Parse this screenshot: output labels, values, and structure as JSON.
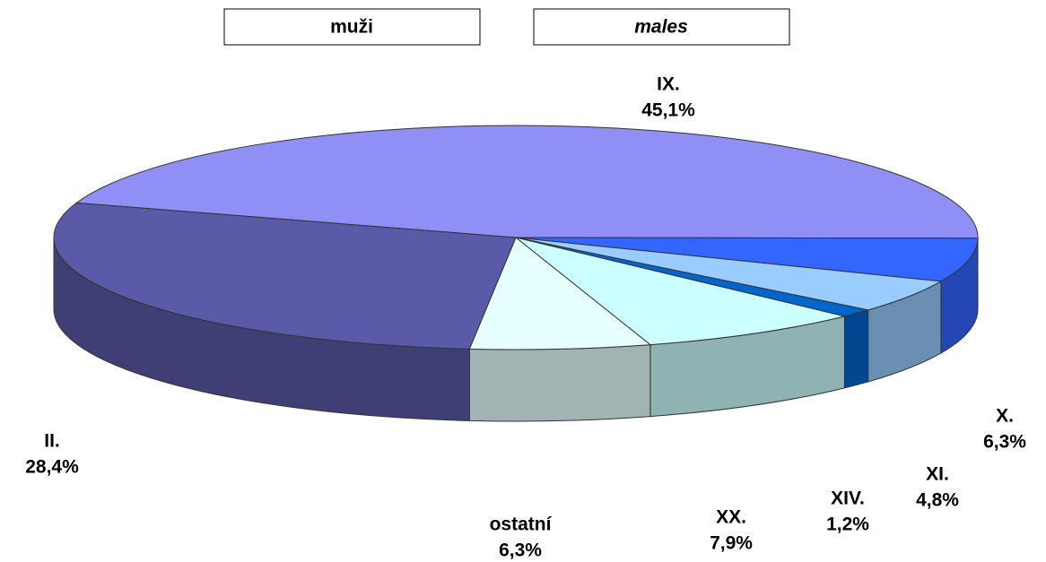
{
  "chart_data": {
    "type": "pie3d",
    "title": "muži",
    "subtitle": "males",
    "categories": [
      "IX.",
      "X.",
      "XI.",
      "XIV.",
      "XX.",
      "ostatní",
      "II."
    ],
    "values": [
      45.1,
      6.3,
      4.8,
      1.2,
      7.9,
      6.3,
      28.4
    ],
    "value_labels": [
      "45,1%",
      "6,3%",
      "4,8%",
      "1,2%",
      "7,9%",
      "6,3%",
      "28,4%"
    ],
    "colors": [
      "#8f8ff5",
      "#3366ff",
      "#99ccff",
      "#0066cc",
      "#ccffff",
      "#e6ffff",
      "#5a5aa8"
    ]
  }
}
